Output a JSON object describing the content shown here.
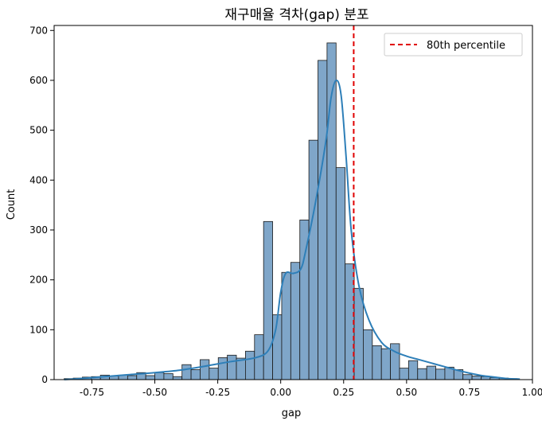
{
  "chart_data": {
    "type": "histogram",
    "title": "재구매율 격차(gap) 분포",
    "xlabel": "gap",
    "ylabel": "Count",
    "xlim": [
      -0.9,
      1.0
    ],
    "ylim": [
      0,
      710
    ],
    "xticks": [
      -0.75,
      -0.5,
      -0.25,
      0.0,
      0.25,
      0.5,
      0.75,
      1.0
    ],
    "xtick_labels": [
      "-0.75",
      "-0.50",
      "-0.25",
      "0.00",
      "0.25",
      "0.50",
      "0.75",
      "1.00"
    ],
    "yticks": [
      0,
      100,
      200,
      300,
      400,
      500,
      600,
      700
    ],
    "ytick_labels": [
      "0",
      "100",
      "200",
      "300",
      "400",
      "500",
      "600",
      "700"
    ],
    "bins": {
      "start": -0.86,
      "width": 0.036,
      "counts": [
        2,
        3,
        5,
        6,
        9,
        7,
        9,
        8,
        14,
        8,
        14,
        12,
        6,
        30,
        20,
        40,
        23,
        44,
        49,
        43,
        57,
        90,
        317,
        130,
        215,
        235,
        320,
        480,
        640,
        675,
        425,
        232,
        183,
        100,
        68,
        62,
        72,
        23,
        38,
        22,
        27,
        21,
        25,
        20,
        10,
        7,
        6,
        4,
        3,
        2
      ]
    },
    "kde": {
      "x": [
        -0.86,
        -0.8,
        -0.7,
        -0.6,
        -0.5,
        -0.4,
        -0.3,
        -0.2,
        -0.1,
        -0.05,
        -0.02,
        0.0,
        0.02,
        0.05,
        0.08,
        0.1,
        0.14,
        0.18,
        0.2,
        0.22,
        0.24,
        0.26,
        0.28,
        0.31,
        0.35,
        0.4,
        0.45,
        0.5,
        0.55,
        0.6,
        0.65,
        0.7,
        0.75,
        0.8,
        0.85,
        0.9,
        0.95
      ],
      "y": [
        0,
        2,
        6,
        10,
        14,
        19,
        27,
        36,
        44,
        58,
        100,
        175,
        213,
        213,
        222,
        260,
        360,
        480,
        565,
        600,
        570,
        445,
        300,
        190,
        120,
        75,
        57,
        47,
        40,
        33,
        26,
        19,
        13,
        8,
        5,
        2,
        1
      ]
    },
    "annotations": [
      {
        "type": "vline",
        "x": 0.29,
        "label": "80th percentile",
        "color": "#e00000",
        "style": "dashed"
      }
    ],
    "legend": {
      "placement": "top-right",
      "entries": [
        "80th percentile"
      ]
    },
    "grid": false,
    "colors": {
      "bar_fill": "#7fa6c9",
      "bar_edge": "#1a1a1a",
      "kde_line": "#2e7fb8",
      "vline": "#e00000"
    }
  }
}
